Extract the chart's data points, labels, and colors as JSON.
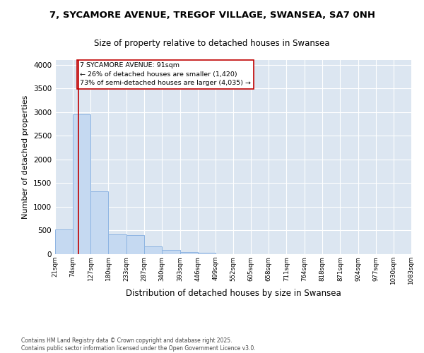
{
  "title_line1": "7, SYCAMORE AVENUE, TREGOF VILLAGE, SWANSEA, SA7 0NH",
  "title_line2": "Size of property relative to detached houses in Swansea",
  "xlabel": "Distribution of detached houses by size in Swansea",
  "ylabel": "Number of detached properties",
  "bar_color": "#c5d9f1",
  "bar_edge_color": "#8db4e2",
  "background_color": "#dce6f1",
  "grid_color": "#ffffff",
  "annotation_box_edgecolor": "#c00000",
  "annotation_line_color": "#c00000",
  "property_sqm": 91,
  "annotation_text": "7 SYCAMORE AVENUE: 91sqm\n← 26% of detached houses are smaller (1,420)\n73% of semi-detached houses are larger (4,035) →",
  "footer_text": "Contains HM Land Registry data © Crown copyright and database right 2025.\nContains public sector information licensed under the Open Government Licence v3.0.",
  "bin_edges": [
    21,
    74,
    127,
    180,
    233,
    287,
    340,
    393,
    446,
    499,
    552,
    605,
    658,
    711,
    764,
    818,
    871,
    924,
    977,
    1030,
    1083
  ],
  "bar_heights": [
    520,
    2950,
    1320,
    420,
    400,
    160,
    95,
    50,
    30,
    0,
    0,
    0,
    0,
    0,
    0,
    0,
    0,
    0,
    0,
    0
  ],
  "ylim": [
    0,
    4100
  ],
  "yticks": [
    0,
    500,
    1000,
    1500,
    2000,
    2500,
    3000,
    3500,
    4000
  ],
  "figsize": [
    6.0,
    5.0
  ],
  "dpi": 100
}
